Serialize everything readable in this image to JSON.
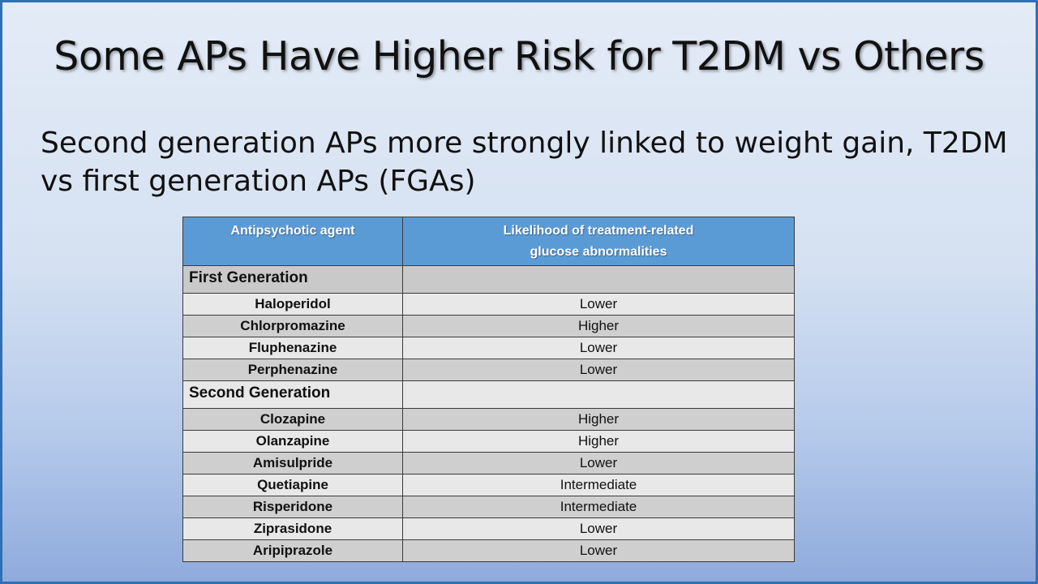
{
  "title": "Some APs Have Higher Risk for T2DM vs Others",
  "subtitle": "Second generation APs more strongly linked to weight gain, T2DM vs first generation APs (FGAs)",
  "table": {
    "headers": [
      "Antipsychotic  agent",
      "Likelihood  of  treatment-related",
      "glucose  abnormalities"
    ],
    "groups": [
      {
        "label": "First Generation",
        "rows": [
          {
            "agent": "Haloperidol",
            "likelihood": "Lower"
          },
          {
            "agent": "Chlorpromazine",
            "likelihood": "Higher"
          },
          {
            "agent": "Fluphenazine",
            "likelihood": "Lower"
          },
          {
            "agent": "Perphenazine",
            "likelihood": "Lower"
          }
        ]
      },
      {
        "label": "Second Generation",
        "rows": [
          {
            "agent": "Clozapine",
            "likelihood": "Higher"
          },
          {
            "agent": "Olanzapine",
            "likelihood": "Higher"
          },
          {
            "agent": "Amisulpride",
            "likelihood": "Lower"
          },
          {
            "agent": "Quetiapine",
            "likelihood": "Intermediate"
          },
          {
            "agent": "Risperidone",
            "likelihood": "Intermediate"
          },
          {
            "agent": "Ziprasidone",
            "likelihood": "Lower"
          },
          {
            "agent": "Aripiprazole",
            "likelihood": "Lower"
          }
        ]
      }
    ]
  },
  "colors": {
    "header_bg": "#5b9bd5",
    "border": "#2f6fb5"
  }
}
